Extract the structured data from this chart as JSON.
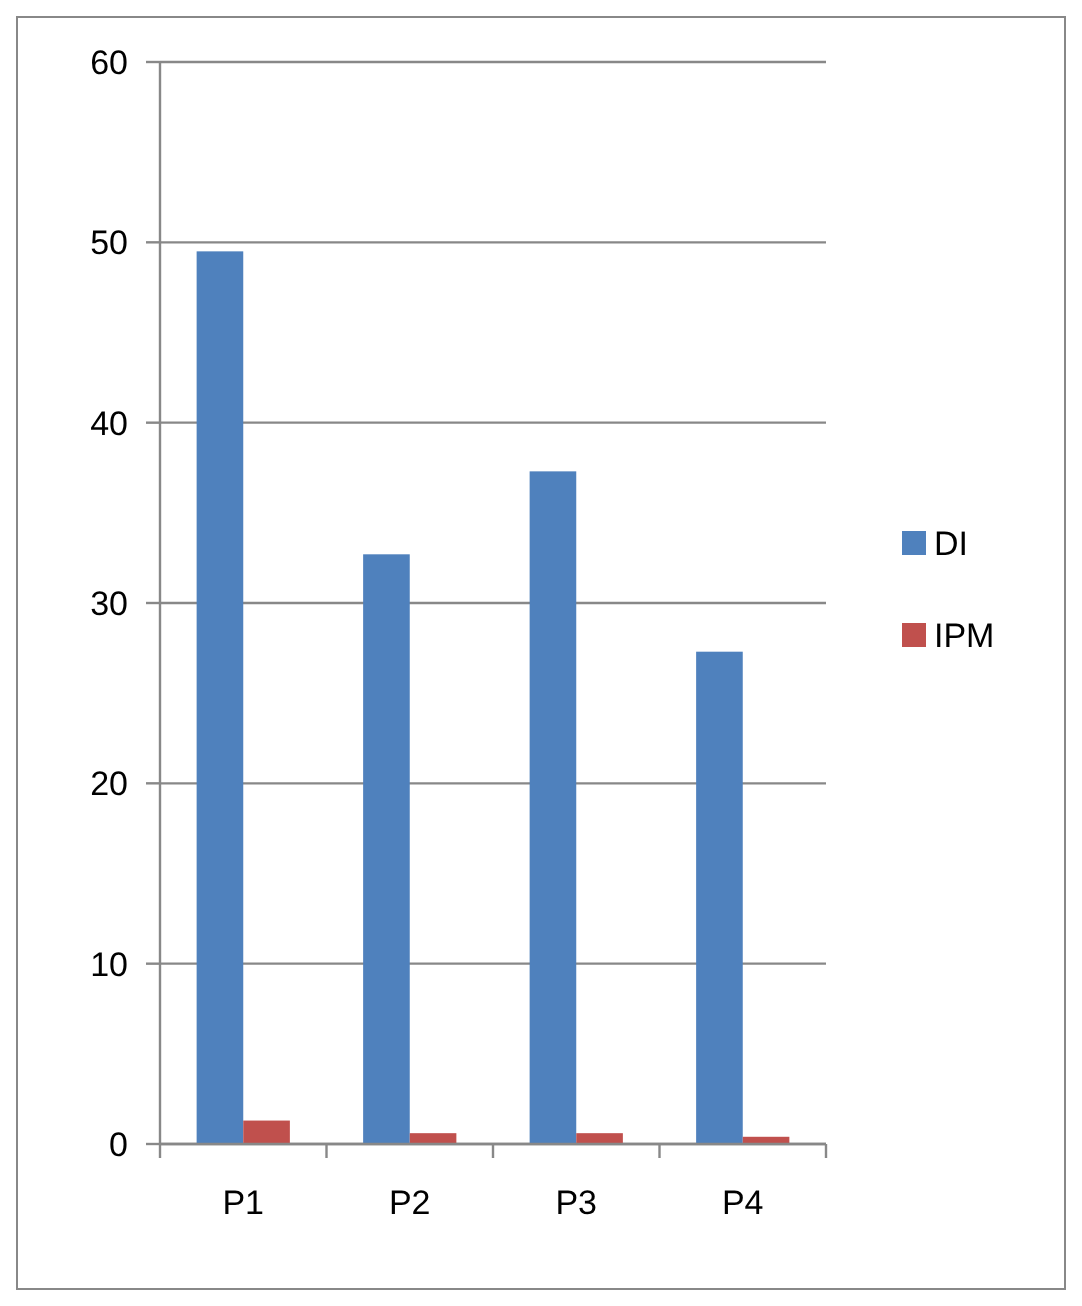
{
  "chart_data": {
    "type": "bar",
    "categories": [
      "P1",
      "P2",
      "P3",
      "P4"
    ],
    "series": [
      {
        "name": "DI",
        "color": "#4f81bd",
        "values": [
          49.5,
          32.7,
          37.3,
          27.3
        ]
      },
      {
        "name": "IPM",
        "color": "#c0504d",
        "values": [
          1.3,
          0.6,
          0.6,
          0.4
        ]
      }
    ],
    "ylim": [
      0,
      60
    ],
    "yticks": [
      0,
      10,
      20,
      30,
      40,
      50,
      60
    ],
    "grid": "y",
    "legend": "right"
  }
}
